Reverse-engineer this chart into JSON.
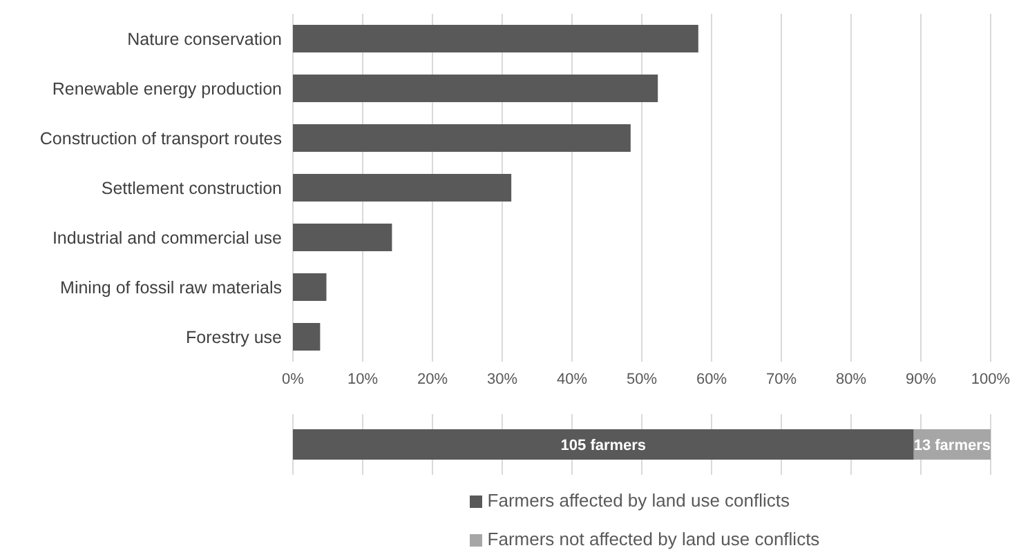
{
  "chart_data": [
    {
      "type": "bar",
      "orientation": "horizontal",
      "categories": [
        "Nature conservation",
        "Renewable energy production",
        "Construction of transport routes",
        "Settlement construction ",
        "Industrial and commercial use",
        "Mining of fossil raw materials",
        "Forestry use"
      ],
      "series": [
        {
          "color": "#595959",
          "values": [
            58.1,
            52.3,
            48.4,
            31.3,
            14.2,
            4.8,
            3.9
          ]
        }
      ],
      "xlim": [
        0,
        100
      ],
      "xticks": [
        {
          "value": 0,
          "label": "0%"
        },
        {
          "value": 10,
          "label": "10%"
        },
        {
          "value": 20,
          "label": "20%"
        },
        {
          "value": 30,
          "label": "30%"
        },
        {
          "value": 40,
          "label": "40%"
        },
        {
          "value": 50,
          "label": "50%"
        },
        {
          "value": 60,
          "label": "60%"
        },
        {
          "value": 70,
          "label": "70%"
        },
        {
          "value": 80,
          "label": "80%"
        },
        {
          "value": 90,
          "label": "90%"
        },
        {
          "value": 100,
          "label": "100%"
        }
      ],
      "grid": "x"
    },
    {
      "type": "bar",
      "orientation": "horizontal",
      "stacked": true,
      "categories": [
        null
      ],
      "series": [
        {
          "name": "Farmers affected by land use conflicts",
          "color": "#595959",
          "values": [
            105
          ],
          "value_labels": [
            "105 farmers"
          ]
        },
        {
          "name": "Farmers not affected by land use conflicts",
          "color": "#a6a6a6",
          "values": [
            13
          ],
          "value_labels": [
            "13 farmers"
          ]
        }
      ],
      "xlim": [
        0,
        118
      ],
      "xticks": [
        {
          "value": 0,
          "label": null
        },
        {
          "value": 11.8,
          "label": null
        },
        {
          "value": 23.6,
          "label": null
        },
        {
          "value": 35.4,
          "label": null
        },
        {
          "value": 47.2,
          "label": null
        },
        {
          "value": 59,
          "label": null
        },
        {
          "value": 70.8,
          "label": null
        },
        {
          "value": 82.6,
          "label": null
        },
        {
          "value": 94.4,
          "label": null
        },
        {
          "value": 106.2,
          "label": null
        },
        {
          "value": 118,
          "label": null
        }
      ],
      "grid": "x",
      "tick_labels": false,
      "legend": "bottom"
    }
  ]
}
